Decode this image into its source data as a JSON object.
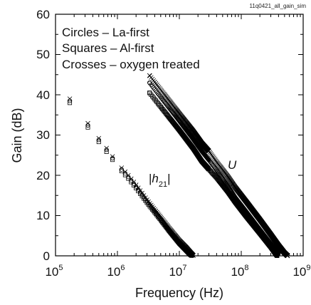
{
  "chart_data": {
    "type": "scatter",
    "file_id": "11q0421_all_gain_sim",
    "xlabel": "Frequency (Hz)",
    "ylabel": "Gain (dB)",
    "xscale": "log",
    "xlim": [
      100000,
      1000000000
    ],
    "ylim": [
      0,
      60
    ],
    "xticks": [
      {
        "value": 100000,
        "base": "10",
        "exp": "5"
      },
      {
        "value": 1000000,
        "base": "10",
        "exp": "6"
      },
      {
        "value": 10000000,
        "base": "10",
        "exp": "7"
      },
      {
        "value": 100000000,
        "base": "10",
        "exp": "8"
      },
      {
        "value": 1000000000,
        "base": "10",
        "exp": "9"
      }
    ],
    "yticks": [
      "0",
      "10",
      "20",
      "30",
      "40",
      "50",
      "60"
    ],
    "grid": false,
    "legend_placement": "top-left",
    "legend": {
      "line1": "Circles – La-first",
      "line2": "Squares – Al-first",
      "line3": "Crosses – oxygen treated"
    },
    "annotations": {
      "h21_var": "h",
      "h21_sub": "21",
      "u_label": "U"
    },
    "series": [
      {
        "marker": "circle",
        "h21": [
          [
            170000,
            38.5
          ],
          [
            330000,
            32.5
          ],
          [
            500000,
            28.8
          ],
          [
            670000,
            26.3
          ],
          [
            830000,
            24.3
          ],
          [
            1000000,
            22.6
          ],
          [
            1500000,
            19.6
          ],
          [
            2000000,
            17.2
          ],
          [
            3000000,
            13.5
          ],
          [
            5000000,
            9.2
          ],
          [
            7000000,
            6.3
          ],
          [
            10000000,
            3.4
          ],
          [
            13000000,
            1.6
          ],
          [
            15000000,
            0.5
          ],
          [
            16500000,
            0
          ]
        ],
        "u": [
          [
            3300000,
            43.0
          ],
          [
            10000000,
            33.5
          ],
          [
            16700000,
            29.0
          ],
          [
            23000000,
            26.0
          ],
          [
            30000000,
            23.8
          ],
          [
            40000000,
            21.3
          ],
          [
            60000000,
            17.5
          ],
          [
            80000000,
            14.5
          ],
          [
            120000000,
            11.0
          ],
          [
            200000000,
            6.5
          ],
          [
            300000000,
            3.0
          ],
          [
            400000000,
            0.5
          ]
        ]
      },
      {
        "marker": "square",
        "h21": [
          [
            170000,
            38.0
          ],
          [
            330000,
            32.0
          ],
          [
            500000,
            28.3
          ],
          [
            670000,
            25.8
          ],
          [
            830000,
            23.9
          ],
          [
            1000000,
            22.2
          ],
          [
            1500000,
            19.2
          ],
          [
            2000000,
            16.8
          ],
          [
            3000000,
            13.2
          ],
          [
            5000000,
            8.9
          ],
          [
            7000000,
            6.0
          ],
          [
            10000000,
            3.1
          ],
          [
            13000000,
            1.3
          ],
          [
            15000000,
            0.3
          ],
          [
            16000000,
            0
          ]
        ],
        "u": [
          [
            3300000,
            40.5
          ],
          [
            10000000,
            31.2
          ],
          [
            16700000,
            26.7
          ],
          [
            23000000,
            23.5
          ],
          [
            30000000,
            21.5
          ],
          [
            40000000,
            19.4
          ],
          [
            60000000,
            16.0
          ],
          [
            80000000,
            13.3
          ],
          [
            120000000,
            9.8
          ],
          [
            200000000,
            5.6
          ],
          [
            300000000,
            2.2
          ],
          [
            380000000,
            0
          ]
        ]
      },
      {
        "marker": "cross",
        "h21": [
          [
            170000,
            39.0
          ],
          [
            330000,
            33.0
          ],
          [
            500000,
            29.2
          ],
          [
            670000,
            26.7
          ],
          [
            830000,
            24.7
          ],
          [
            1000000,
            23.0
          ],
          [
            1500000,
            20.0
          ],
          [
            2000000,
            17.6
          ],
          [
            3000000,
            13.9
          ],
          [
            5000000,
            9.6
          ],
          [
            7000000,
            6.7
          ],
          [
            10000000,
            3.8
          ],
          [
            13000000,
            2.0
          ],
          [
            15000000,
            0.9
          ],
          [
            17000000,
            0
          ]
        ],
        "u": [
          [
            3300000,
            44.8
          ],
          [
            10000000,
            35.3
          ],
          [
            16700000,
            31.0
          ],
          [
            23000000,
            28.0
          ],
          [
            30000000,
            26.0
          ],
          [
            40000000,
            23.3
          ],
          [
            60000000,
            19.8
          ],
          [
            80000000,
            17.0
          ],
          [
            120000000,
            13.5
          ],
          [
            200000000,
            9.0
          ],
          [
            300000000,
            5.3
          ],
          [
            400000000,
            2.6
          ],
          [
            500000000,
            0.7
          ],
          [
            560000000,
            0
          ]
        ]
      }
    ]
  }
}
